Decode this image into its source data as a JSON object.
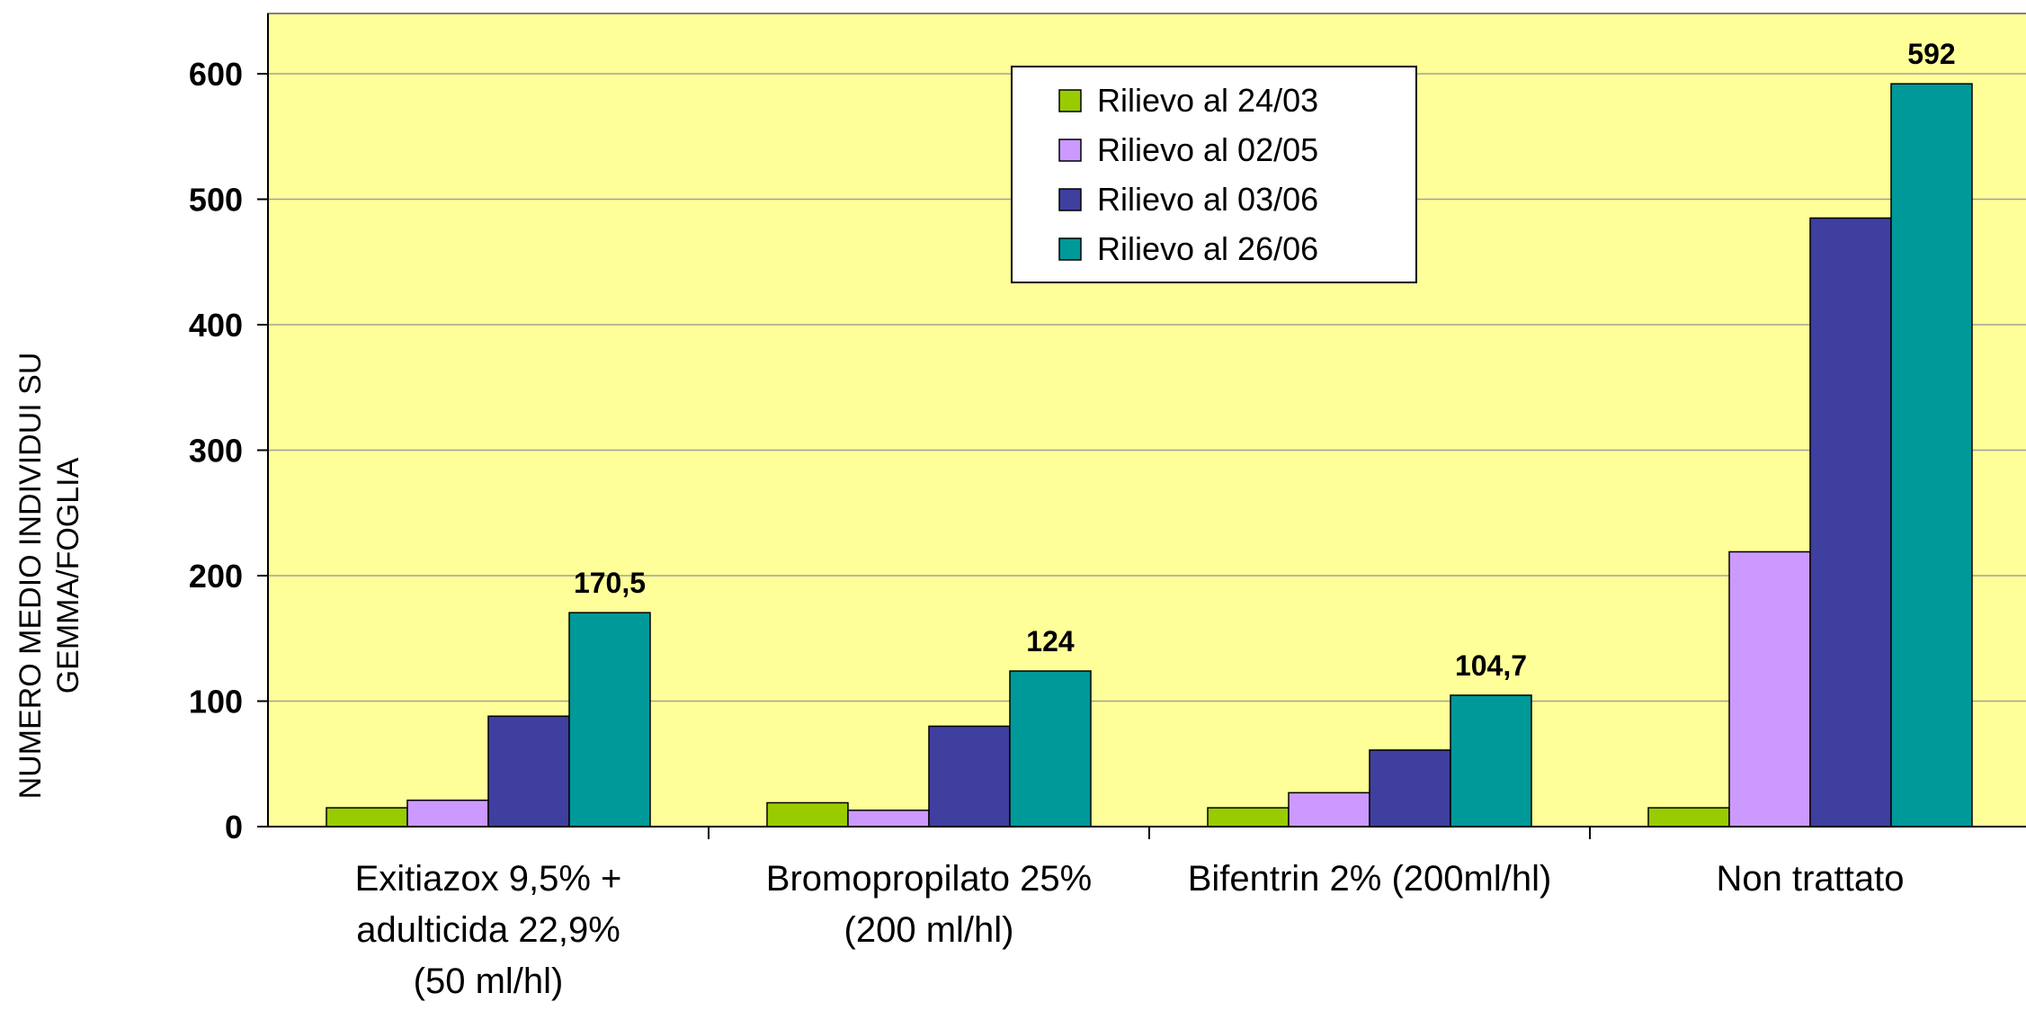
{
  "chart_data": {
    "type": "bar",
    "title": "",
    "xlabel": "",
    "ylabel": [
      "NUMERO MEDIO INDIVIDUI SU",
      "GEMMA/FOGLIA"
    ],
    "ylim": [
      0,
      650
    ],
    "yticks": [
      "0",
      "100",
      "200",
      "300",
      "400",
      "500",
      "600"
    ],
    "grid": true,
    "legend_position": "top-center",
    "categories": [
      [
        "Exitiazox 9,5% +",
        "adulticida 22,9%",
        "(50 ml/hl)"
      ],
      [
        "Bromopropilato 25%",
        "(200 ml/hl)"
      ],
      [
        "Bifentrin 2% (200ml/hl)"
      ],
      [
        "Non trattato"
      ]
    ],
    "series": [
      {
        "name": "Rilievo al 24/03",
        "color": "#99cc00",
        "values": [
          15,
          19,
          15,
          15
        ]
      },
      {
        "name": "Rilievo al 02/05",
        "color": "#cc99ff",
        "values": [
          21,
          13,
          27,
          219
        ]
      },
      {
        "name": "Rilievo al 03/06",
        "color": "#3f3f9f",
        "values": [
          88,
          80,
          61,
          485
        ]
      },
      {
        "name": "Rilievo al 26/06",
        "color": "#009999",
        "values": [
          170.5,
          124,
          104.7,
          592
        ]
      }
    ],
    "data_labels": [
      "170,5",
      "124",
      "104,7",
      "592"
    ],
    "plot_background": "#ffff99"
  }
}
